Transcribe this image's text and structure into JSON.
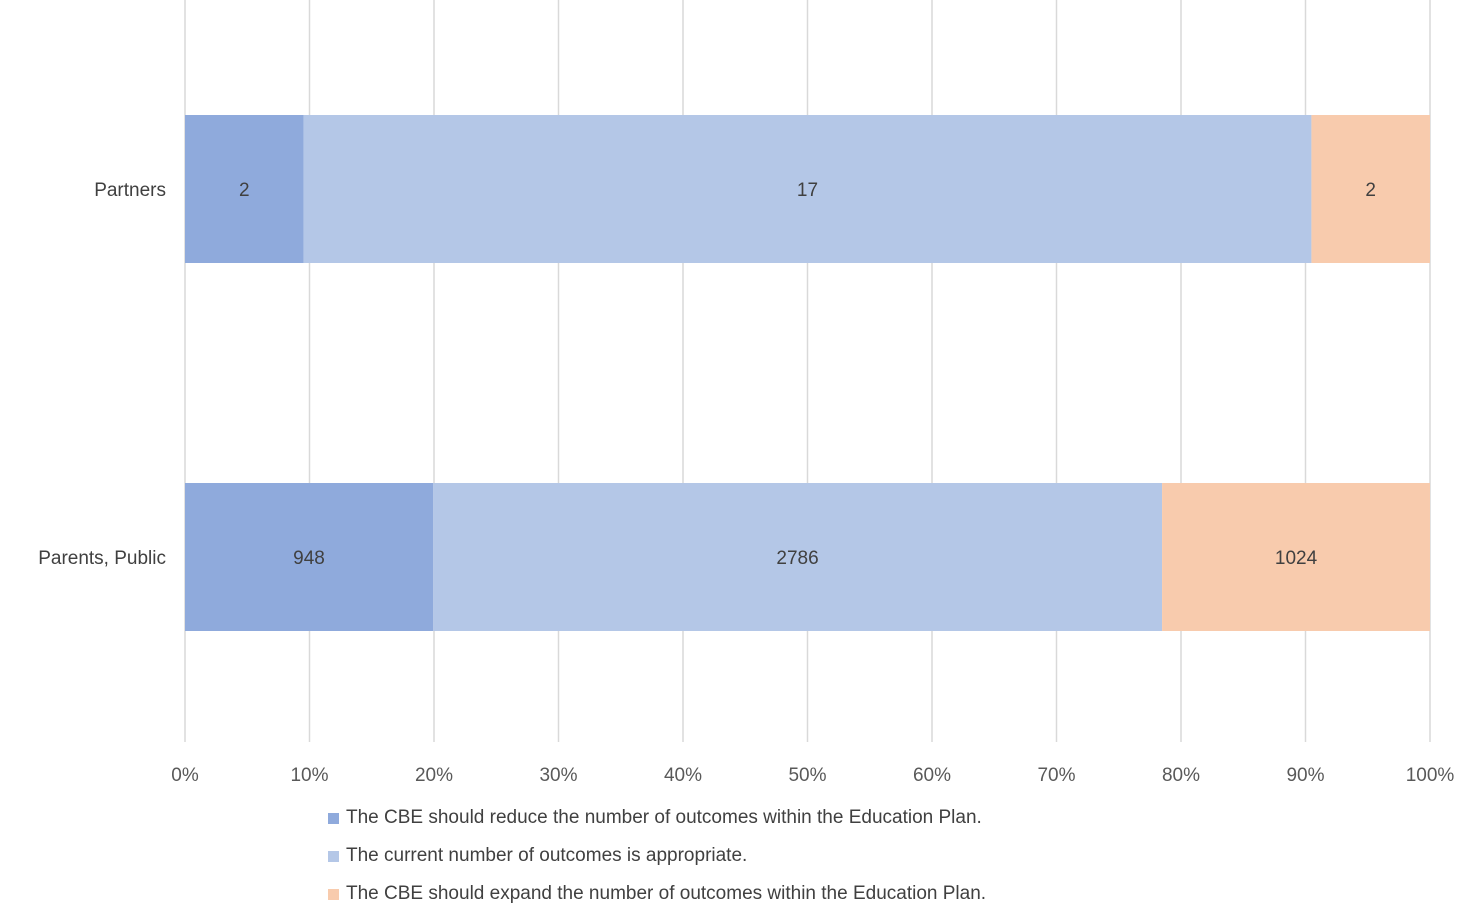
{
  "chart_data": {
    "type": "bar",
    "orientation": "horizontal",
    "stacked": "100%",
    "categories": [
      "Partners",
      "Parents, Public"
    ],
    "series": [
      {
        "name": "The CBE should reduce the number of outcomes within the Education Plan.",
        "values": [
          2,
          948
        ],
        "color": "#8faadc"
      },
      {
        "name": "The current number of outcomes is appropriate.",
        "values": [
          17,
          2786
        ],
        "color": "#b4c7e7"
      },
      {
        "name": "The CBE should expand the number of outcomes within the Education Plan.",
        "values": [
          2,
          1024
        ],
        "color": "#f8cbad"
      }
    ],
    "x_ticks": [
      "0%",
      "10%",
      "20%",
      "30%",
      "40%",
      "50%",
      "60%",
      "70%",
      "80%",
      "90%",
      "100%"
    ],
    "xlim": [
      0,
      100
    ],
    "grid": true,
    "legend_position": "bottom"
  }
}
